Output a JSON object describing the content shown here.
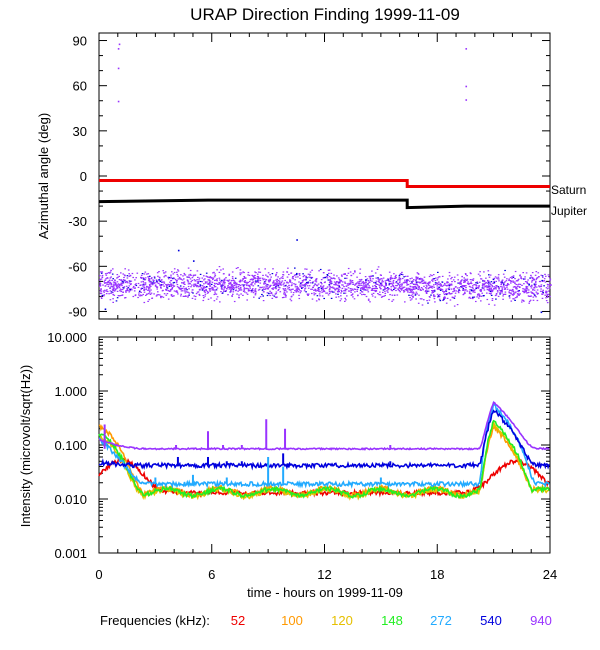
{
  "title": "URAP Direction Finding  1999-11-09",
  "xlabel": "time - hours on 1999-11-09",
  "frequencies_label": "Frequencies (kHz):",
  "colors": {
    "52": "#ee0000",
    "100": "#ff9900",
    "120": "#e6c000",
    "148": "#22ee22",
    "272": "#22aaff",
    "540": "#0000dd",
    "940": "#9933ff",
    "saturn": "#ee0000",
    "jupiter": "#000000"
  },
  "chart_data": [
    {
      "type": "scatter",
      "name": "azimuth",
      "ylabel": "Azimuthal angle (deg)",
      "xlim": [
        0,
        24
      ],
      "ylim": [
        -95,
        95
      ],
      "yticks": [
        90,
        60,
        30,
        0,
        -30,
        -60,
        -90
      ],
      "xticks": [
        0,
        6,
        12,
        18,
        24
      ],
      "series": [
        {
          "name": "Saturn",
          "points": [
            [
              0,
              -3
            ],
            [
              16.4,
              -3
            ],
            [
              16.4,
              -7
            ],
            [
              24,
              -7
            ]
          ]
        },
        {
          "name": "Jupiter",
          "points": [
            [
              0,
              -17
            ],
            [
              5.8,
              -16
            ],
            [
              16.4,
              -16
            ],
            [
              16.4,
              -21
            ],
            [
              19.5,
              -20
            ],
            [
              24,
              -20
            ]
          ]
        }
      ],
      "labels": [
        "Saturn",
        "Jupiter"
      ],
      "scatter_band": {
        "freq": "940",
        "x": [
          0,
          24
        ],
        "center": -72,
        "spread": 9
      },
      "outliers_940": [
        [
          1.0,
          85
        ],
        [
          1.05,
          88
        ],
        [
          1.0,
          72
        ],
        [
          1.0,
          50
        ],
        [
          19.5,
          85
        ],
        [
          19.5,
          60
        ],
        [
          19.5,
          51
        ]
      ],
      "outliers_540": [
        [
          4.2,
          -49
        ],
        [
          5.0,
          -56
        ],
        [
          10.5,
          -42
        ],
        [
          0.3,
          -88
        ],
        [
          23.5,
          -90
        ]
      ]
    },
    {
      "type": "line",
      "name": "intensity",
      "ylabel": "Intensity (microvolt/sqrt(Hz))",
      "yscale": "log",
      "ylim": [
        0.001,
        10
      ],
      "yticks": [
        "10.000",
        "1.000",
        "0.100",
        "0.010",
        "0.001"
      ],
      "ytick_values": [
        10,
        1,
        0.1,
        0.01,
        0.001
      ],
      "xticks": [
        0,
        6,
        12,
        18,
        24
      ],
      "xlim": [
        0,
        24
      ],
      "series": [
        {
          "name": "52",
          "base": 0.013,
          "peak": 0.055
        },
        {
          "name": "100",
          "base": 0.012,
          "peak": 0.19
        },
        {
          "name": "120",
          "base": 0.011,
          "peak": 0.12
        },
        {
          "name": "148",
          "base": 0.0115,
          "peak": 0.14
        },
        {
          "name": "272",
          "base": 0.019,
          "peak": 0.13
        },
        {
          "name": "540",
          "base": 0.042,
          "peak": 0.06
        },
        {
          "name": "940",
          "base": 0.085,
          "peak": 0.22
        }
      ],
      "spikes": [
        {
          "freq": "940",
          "x": 0.3,
          "y": 0.24
        },
        {
          "freq": "940",
          "x": 4.1,
          "y": 0.1
        },
        {
          "freq": "940",
          "x": 5.8,
          "y": 0.18
        },
        {
          "freq": "940",
          "x": 6.6,
          "y": 0.1
        },
        {
          "freq": "940",
          "x": 7.6,
          "y": 0.1
        },
        {
          "freq": "940",
          "x": 8.9,
          "y": 0.3
        },
        {
          "freq": "940",
          "x": 9.9,
          "y": 0.2
        },
        {
          "freq": "940",
          "x": 15.5,
          "y": 0.1
        },
        {
          "freq": "540",
          "x": 4.2,
          "y": 0.06
        },
        {
          "freq": "540",
          "x": 5.8,
          "y": 0.06
        },
        {
          "freq": "540",
          "x": 6.8,
          "y": 0.05
        },
        {
          "freq": "540",
          "x": 7.6,
          "y": 0.05
        },
        {
          "freq": "540",
          "x": 9.8,
          "y": 0.07
        },
        {
          "freq": "540",
          "x": 15.5,
          "y": 0.05
        },
        {
          "freq": "272",
          "x": 3.0,
          "y": 0.025
        },
        {
          "freq": "272",
          "x": 5.0,
          "y": 0.028
        },
        {
          "freq": "272",
          "x": 6.8,
          "y": 0.025
        },
        {
          "freq": "272",
          "x": 9.0,
          "y": 0.06
        },
        {
          "freq": "272",
          "x": 9.8,
          "y": 0.04
        },
        {
          "freq": "272",
          "x": 15.0,
          "y": 0.025
        }
      ],
      "burst": {
        "x_start": 20.2,
        "x_peak": 21.0,
        "x_end": 23.3,
        "peaks": {
          "940": 0.62,
          "540": 0.45,
          "272": 0.55,
          "148": 0.28,
          "120": 0.25,
          "100": 0.22
        }
      }
    }
  ],
  "legend": [
    {
      "label": "52",
      "freq": "52"
    },
    {
      "label": "100",
      "freq": "100"
    },
    {
      "label": "120",
      "freq": "120"
    },
    {
      "label": "148",
      "freq": "148"
    },
    {
      "label": "272",
      "freq": "272"
    },
    {
      "label": "540",
      "freq": "540"
    },
    {
      "label": "940",
      "freq": "940"
    }
  ]
}
